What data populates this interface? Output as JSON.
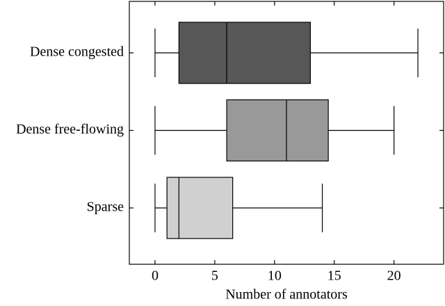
{
  "chart_data": {
    "type": "boxplot",
    "orientation": "horizontal",
    "xlabel": "Number of annotators",
    "categories": [
      "Dense congested",
      "Dense free-flowing",
      "Sparse"
    ],
    "colors": [
      "#575757",
      "#999999",
      "#d0d0d0"
    ],
    "min": [
      0,
      0,
      0
    ],
    "q1": [
      2,
      6,
      1
    ],
    "median": [
      6,
      11,
      2
    ],
    "q3": [
      13,
      14.5,
      6.5
    ],
    "max": [
      22,
      20,
      14
    ],
    "xlim": [
      -2.15,
      24.15
    ],
    "xticks": [
      0,
      5,
      10,
      15,
      20
    ]
  }
}
